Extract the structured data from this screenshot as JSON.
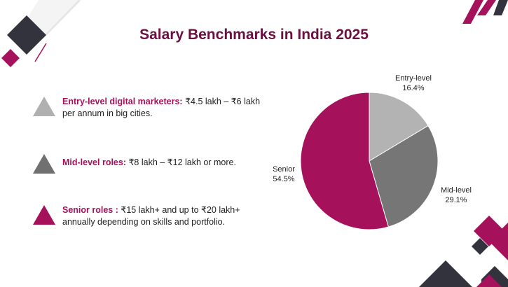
{
  "title": "Salary Benchmarks in India 2025",
  "bullets": [
    {
      "label": "Entry-level digital marketers:",
      "text": " ₹4.5 lakh – ₹6 lakh per annum in big cities.",
      "icon": "light-gray-triangle-icon",
      "color": "#b0b0b0"
    },
    {
      "label": "Mid-level roles:",
      "text": " ₹8 lakh – ₹12 lakh or more.",
      "icon": "gray-triangle-icon",
      "color": "#707070"
    },
    {
      "label": "Senior roles :",
      "text": " ₹15 lakh+ and up to ₹20 lakh+ annually depending on skills and portfolio.",
      "icon": "magenta-triangle-icon",
      "color": "#a6115c"
    }
  ],
  "chart_data": {
    "type": "pie",
    "title": "",
    "slices": [
      {
        "name": "Entry-level",
        "value": 16.4,
        "pct_label": "16.4%",
        "color": "#b3b3b3"
      },
      {
        "name": "Mid-level",
        "value": 29.1,
        "pct_label": "29.1%",
        "color": "#767676"
      },
      {
        "name": "Senior",
        "value": 54.5,
        "pct_label": "54.5%",
        "color": "#a6115c"
      }
    ],
    "start": "12 o'clock",
    "direction": "clockwise"
  },
  "colors": {
    "title": "#6b1040",
    "accent": "#a6115c",
    "dark": "#33333e"
  }
}
